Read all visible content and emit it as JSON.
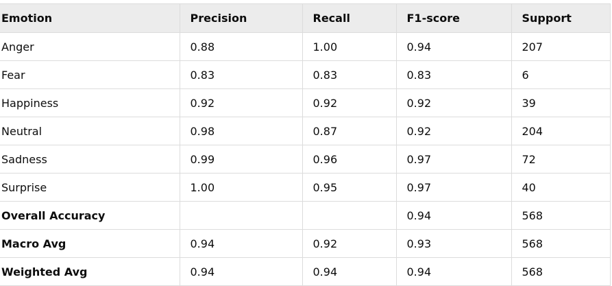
{
  "table": {
    "header": [
      "Emotion",
      "Precision",
      "Recall",
      "F1-score",
      "Support"
    ],
    "rows": [
      [
        "Anger",
        "0.88",
        "1.00",
        "0.94",
        "207"
      ],
      [
        "Fear",
        "0.83",
        "0.83",
        "0.83",
        "6"
      ],
      [
        "Happiness",
        "0.92",
        "0.92",
        "0.92",
        "39"
      ],
      [
        "Neutral",
        "0.98",
        "0.87",
        "0.92",
        "204"
      ],
      [
        "Sadness",
        "0.99",
        "0.96",
        "0.97",
        "72"
      ],
      [
        "Surprise",
        "1.00",
        "0.95",
        "0.97",
        "40"
      ],
      [
        "Overall Accuracy",
        null,
        null,
        "0.94",
        "568"
      ],
      [
        "Macro Avg",
        "0.94",
        "0.92",
        "0.93",
        "568"
      ],
      [
        "Weighted Avg",
        "0.94",
        "0.94",
        "0.94",
        "568"
      ]
    ]
  }
}
